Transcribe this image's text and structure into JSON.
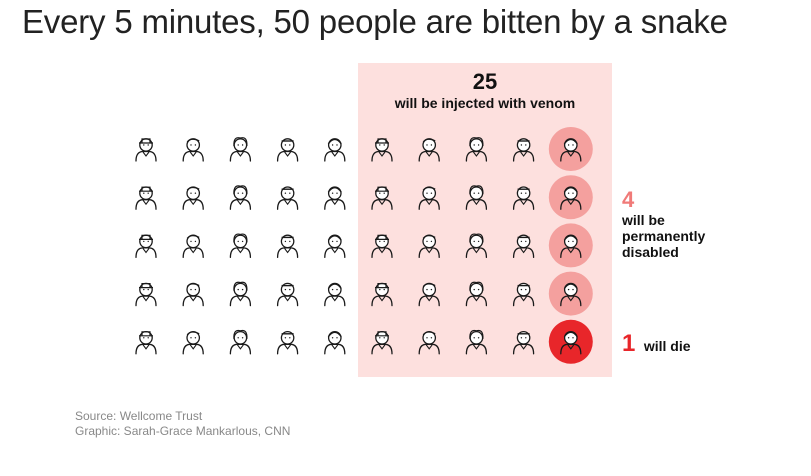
{
  "title": "Every 5 minutes, 50 people are bitten by a snake",
  "chart_data": {
    "type": "pictogram",
    "total": 50,
    "rows": 5,
    "columns": 10,
    "groups": [
      {
        "count": 25,
        "label": "will be injected with venom"
      },
      {
        "count": 4,
        "label": "will be permanently disabled"
      },
      {
        "count": 1,
        "label": "will die"
      }
    ]
  },
  "annotations": {
    "venom_count": "25",
    "venom_label": "will be injected with venom",
    "disabled_count": "4",
    "disabled_label": "will be permanently disabled",
    "death_count": "1",
    "death_label": "will die"
  },
  "colors": {
    "venom_panel": "#fde0de",
    "disabled": "#f4a09e",
    "disabled_text": "#f07a78",
    "death": "#e8262a"
  },
  "icon": "person-icon",
  "source": {
    "line1": "Source: Wellcome Trust",
    "line2": "Graphic: Sarah-Grace Mankarlous, CNN"
  }
}
